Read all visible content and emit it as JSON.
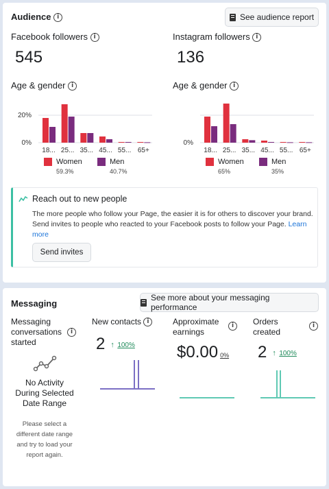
{
  "audience": {
    "title": "Audience",
    "report_button": "See audience report",
    "facebook": {
      "label": "Facebook followers",
      "count": "545",
      "age_gender_label": "Age & gender",
      "y_ticks": [
        "20%",
        "0%"
      ],
      "age_ticks": [
        "18...",
        "25...",
        "35...",
        "45...",
        "55...",
        "65+"
      ],
      "women_label": "Women",
      "women_pct": "59.3%",
      "men_label": "Men",
      "men_pct": "40.7%"
    },
    "instagram": {
      "label": "Instagram followers",
      "count": "136",
      "age_gender_label": "Age & gender",
      "y_ticks": [
        "0%"
      ],
      "age_ticks": [
        "18...",
        "25...",
        "35...",
        "45...",
        "55...",
        "65+"
      ],
      "women_label": "Women",
      "women_pct": "65%",
      "men_label": "Men",
      "men_pct": "35%"
    },
    "reach": {
      "title": "Reach out to new people",
      "body": "The more people who follow your Page, the easier it is for others to discover your brand. Send invites to people who reacted to your Facebook posts to follow your Page.",
      "link": "Learn more",
      "button": "Send invites"
    }
  },
  "messaging": {
    "title": "Messaging",
    "perf_button": "See more about your messaging performance",
    "conversations": {
      "label": "Messaging conversations started",
      "no_activity": "No Activity During Selected Date Range",
      "hint": "Please select a different date range and try to load your report again."
    },
    "new_contacts": {
      "label": "New contacts",
      "value": "2",
      "change": "100%"
    },
    "earnings": {
      "label": "Approximate earnings",
      "value": "$0.00",
      "change": "0%"
    },
    "orders": {
      "label": "Orders created",
      "value": "2",
      "change": "100%"
    }
  },
  "chart_data": [
    {
      "type": "bar",
      "title": "Facebook followers — Age & gender",
      "categories": [
        "18-24",
        "25-34",
        "35-44",
        "45-54",
        "55-64",
        "65+"
      ],
      "ylim": [
        0,
        30
      ],
      "series": [
        {
          "name": "Women",
          "color": "#e0313e",
          "values": [
            18,
            28,
            7,
            4.5,
            0.5,
            0.5
          ]
        },
        {
          "name": "Men",
          "color": "#7a2c7e",
          "values": [
            11.5,
            19,
            7,
            2.5,
            0.5,
            0.3
          ]
        }
      ]
    },
    {
      "type": "bar",
      "title": "Instagram followers — Age & gender",
      "categories": [
        "18-24",
        "25-34",
        "35-44",
        "45-54",
        "55-64",
        "65+"
      ],
      "ylim": [
        0,
        30
      ],
      "series": [
        {
          "name": "Women",
          "color": "#e0313e",
          "values": [
            19,
            28.5,
            2.5,
            1.5,
            0.5,
            0.5
          ]
        },
        {
          "name": "Men",
          "color": "#7a2c7e",
          "values": [
            12,
            13.5,
            1.8,
            0.5,
            0.3,
            0.3
          ]
        }
      ]
    }
  ],
  "colors": {
    "women": "#e0313e",
    "men": "#7a2c7e",
    "accent_teal": "#3bbfa3",
    "line_purple": "#7b6fc4",
    "link": "#1a73d8",
    "positive": "#1f8a5a"
  }
}
